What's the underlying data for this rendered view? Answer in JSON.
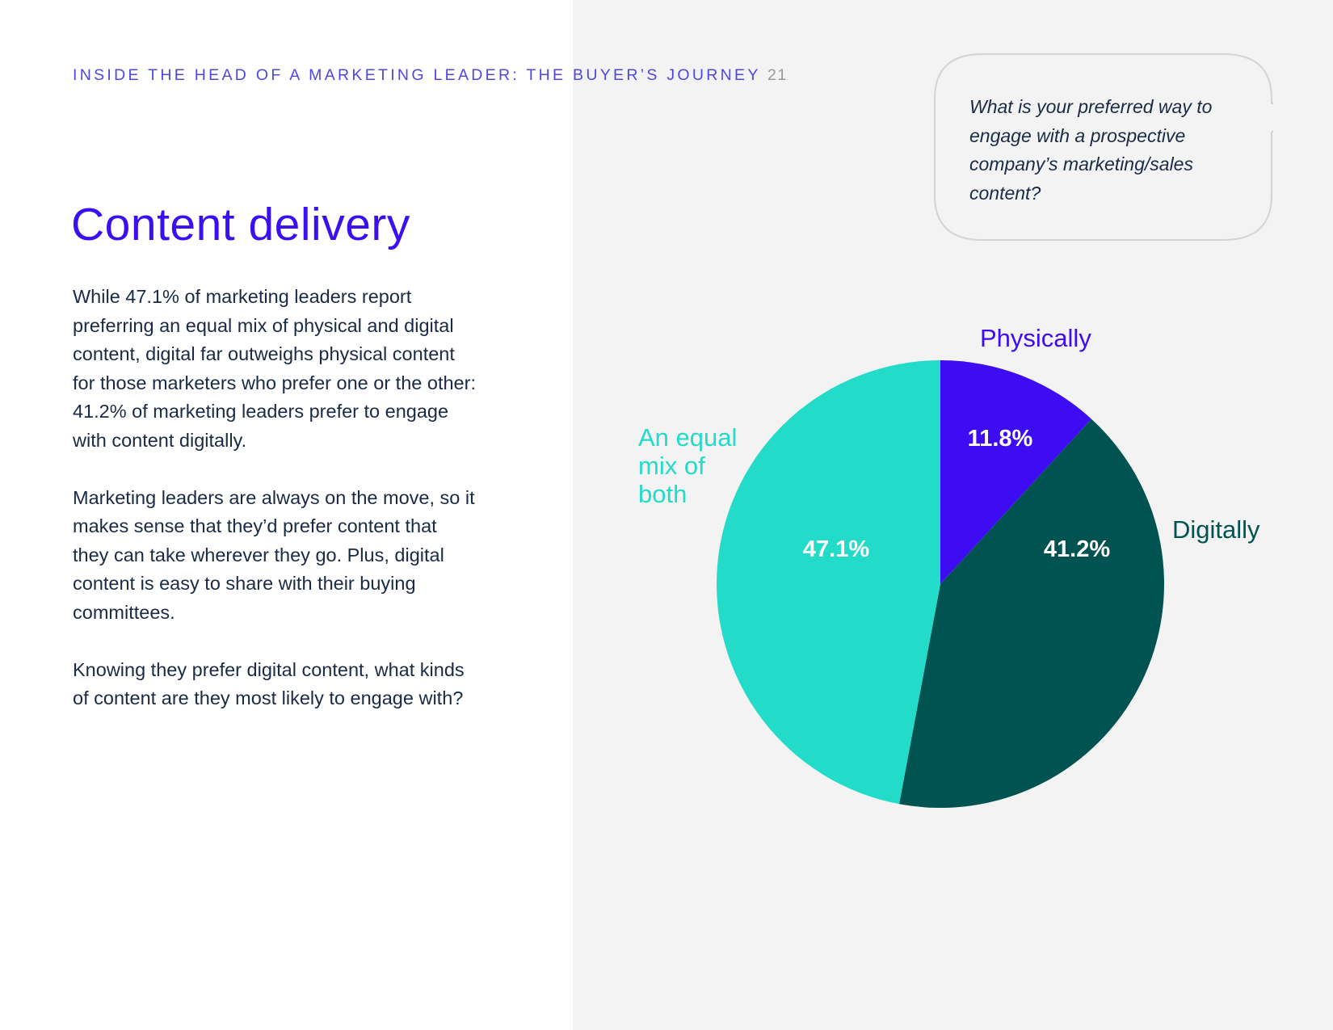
{
  "header": {
    "running_title": "INSIDE THE HEAD OF A MARKETING LEADER: THE BUYER’S JOURNEY",
    "page_number": "21"
  },
  "page_title": "Content delivery",
  "body": {
    "paragraphs": [
      "While 47.1% of marketing leaders report preferring an equal mix of physical and digital content, digital far outweighs physical content for those marketers who prefer one or the other: 41.2% of marketing leaders prefer to engage with content digitally.",
      "Marketing leaders are always on the move, so it makes sense that they’d prefer content that they can take wherever they go. Plus, digital content is easy to share with their buying committees.",
      "Knowing they prefer digital content, what kinds of content are they most likely to engage with?"
    ]
  },
  "question": {
    "text": "What is your preferred way to engage with a prospective company’s marketing/sales content?"
  },
  "colors": {
    "accent": "#3a0ff0",
    "panel_bg": "#f3f3f3",
    "body_text": "#1a2a44"
  },
  "chart_data": {
    "type": "pie",
    "title": "",
    "slices": [
      {
        "label": "Physically",
        "value": 11.8,
        "value_label": "11.8%",
        "color": "#3d0cf2"
      },
      {
        "label": "Digitally",
        "value": 41.2,
        "value_label": "41.2%",
        "color": "#005350"
      },
      {
        "label": "An equal mix of both",
        "value": 47.1,
        "value_label": "47.1%",
        "color": "#22dbc9"
      }
    ]
  }
}
